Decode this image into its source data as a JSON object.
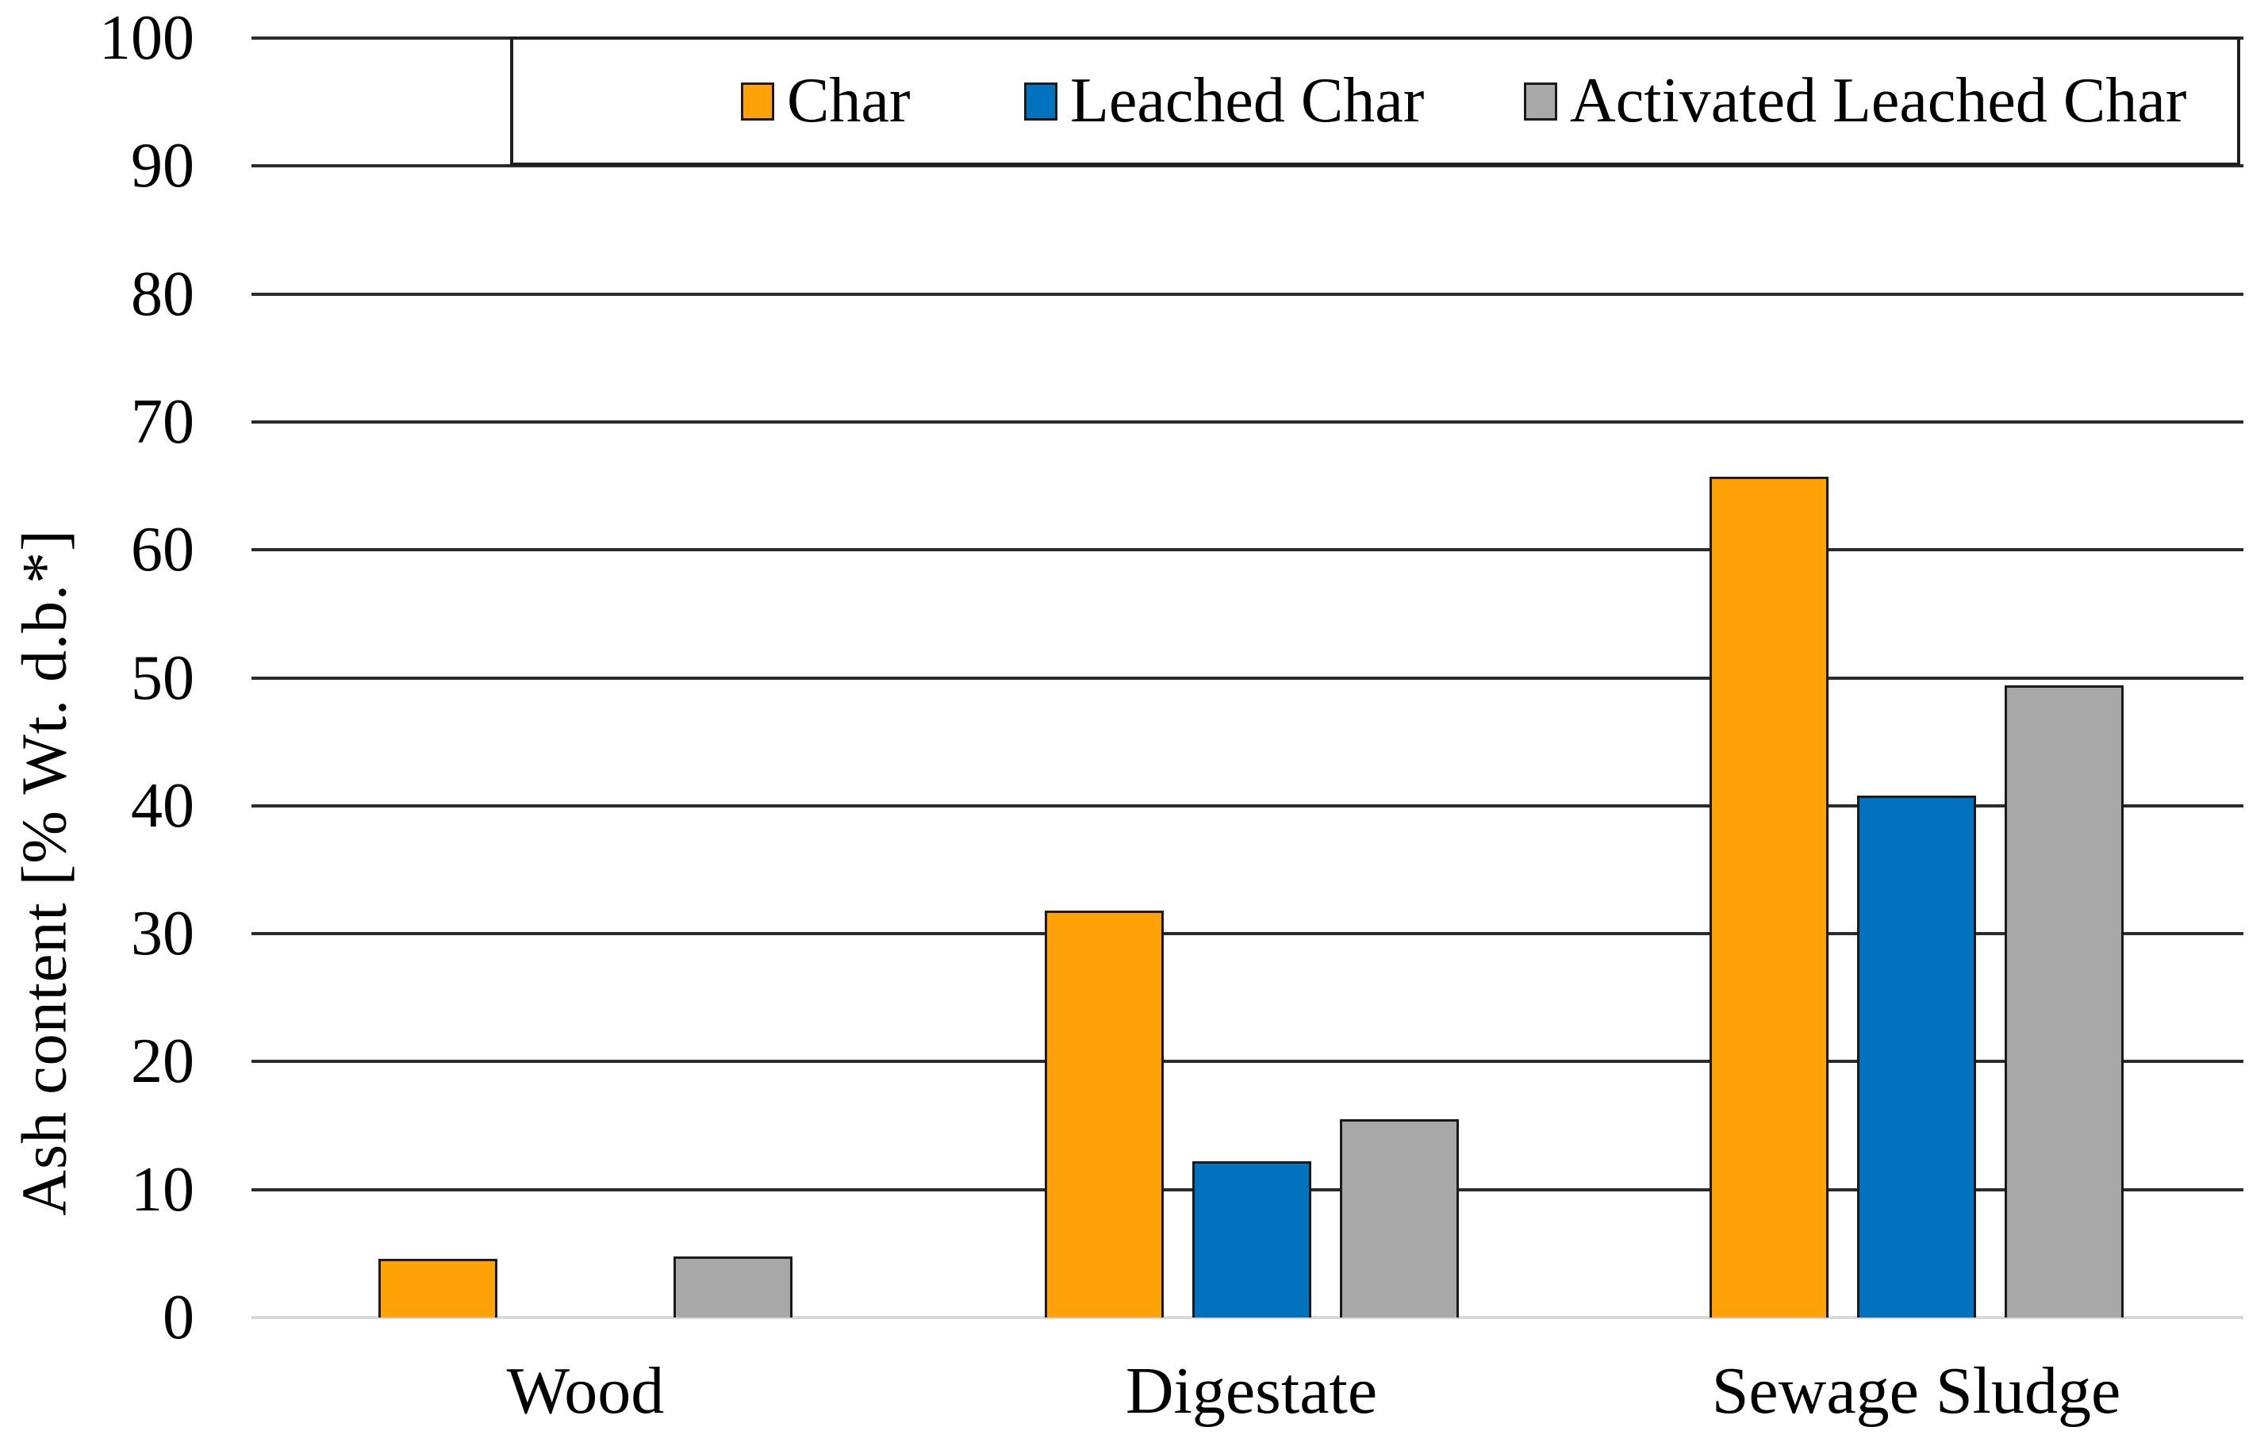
{
  "chart_data": {
    "type": "bar",
    "title": "",
    "ylabel": "Ash content [% Wt. d.b.*]",
    "xlabel": "",
    "ylim": [
      0,
      100
    ],
    "yticks": [
      0,
      10,
      20,
      30,
      40,
      50,
      60,
      70,
      80,
      90,
      100
    ],
    "grid": "horizontal",
    "legend_position": "top",
    "categories": [
      "Wood",
      "Digestate",
      "Sewage Sludge"
    ],
    "series": [
      {
        "name": "Char",
        "color": "#FFA208",
        "values": [
          4.6,
          31.8,
          65.7
        ]
      },
      {
        "name": "Leached Char",
        "color": "#0272BE",
        "values": [
          0,
          12.2,
          40.8
        ]
      },
      {
        "name": "Activated Leached Char",
        "color": "#A8A8A8",
        "values": [
          4.8,
          15.5,
          49.4
        ]
      }
    ]
  },
  "style_colors": {
    "gridline": "#2B2B2B",
    "baseline": "#D9D9D9",
    "bar_outline": "#1A1A1A",
    "legend_border": "#1F1F1F",
    "text": "#000000"
  }
}
